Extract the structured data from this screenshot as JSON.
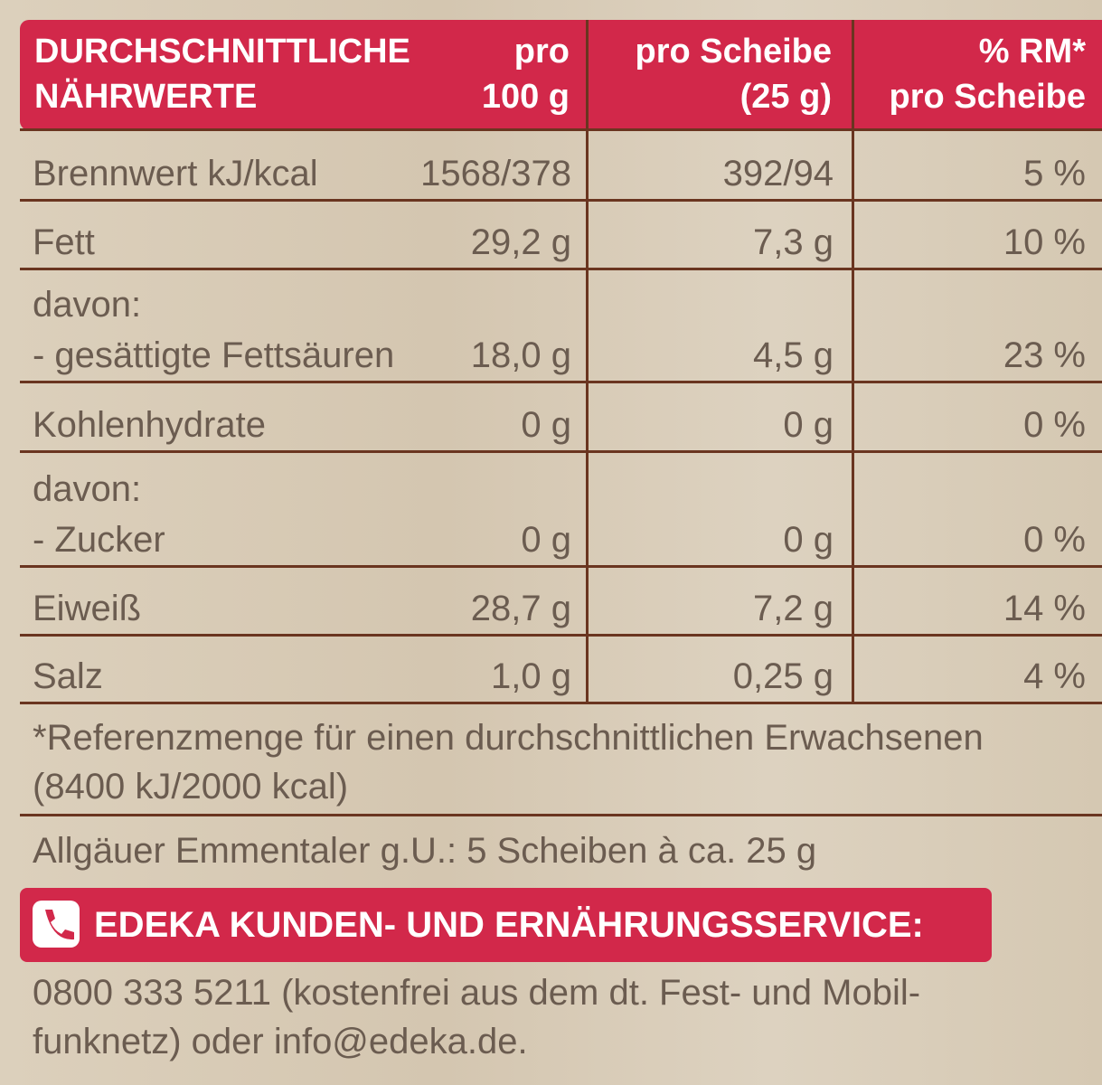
{
  "header": {
    "nutrient": [
      "DURCHSCHNITTLICHE",
      "NÄHRWERTE"
    ],
    "per100": [
      "pro",
      "100 g"
    ],
    "perSlice": [
      "pro Scheibe",
      "(25 g)"
    ],
    "rm": [
      "% RM*",
      "pro Scheibe"
    ]
  },
  "table": {
    "rows": [
      {
        "label": [
          "Brennwert kJ/kcal"
        ],
        "per100": "1568/378",
        "perSlice": "392/94",
        "rm": "5 %"
      },
      {
        "label": [
          "Fett"
        ],
        "per100": "29,2 g",
        "perSlice": "7,3 g",
        "rm": "10 %"
      },
      {
        "label": [
          "davon:",
          "- gesättigte Fettsäuren"
        ],
        "per100": "18,0 g",
        "perSlice": "4,5 g",
        "rm": "23 %"
      },
      {
        "label": [
          "Kohlenhydrate"
        ],
        "per100": "0 g",
        "perSlice": "0 g",
        "rm": "0 %"
      },
      {
        "label": [
          "davon:",
          "- Zucker"
        ],
        "per100": "0 g",
        "perSlice": "0 g",
        "rm": "0 %"
      },
      {
        "label": [
          "Eiweiß"
        ],
        "per100": "28,7 g",
        "perSlice": "7,2 g",
        "rm": "14 %"
      },
      {
        "label": [
          "Salz"
        ],
        "per100": "1,0 g",
        "perSlice": "0,25 g",
        "rm": "4 %"
      }
    ]
  },
  "footnote": [
    "*Referenzmenge für einen durchschnittlichen Erwachsenen",
    "(8400 kJ/2000 kcal)"
  ],
  "serving": "Allgäuer Emmentaler g.U.: 5 Scheiben à ca. 25 g",
  "service": {
    "title": "EDEKA KUNDEN- UND ERNÄHRUNGSSERVICE:",
    "contact": [
      "0800 333 5211 (kostenfrei aus dem dt. Fest- und Mobil-",
      "funknetz) oder info@edeka.de."
    ]
  }
}
